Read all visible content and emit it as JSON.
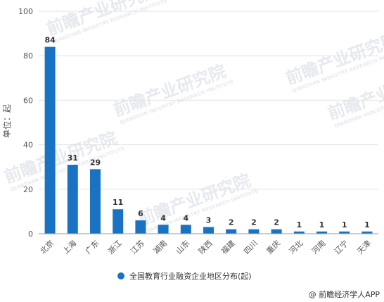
{
  "chart_data": {
    "type": "bar",
    "categories": [
      "北京",
      "上海",
      "广东",
      "浙江",
      "江苏",
      "湖南",
      "山东",
      "陕西",
      "福建",
      "四川",
      "重庆",
      "河北",
      "河南",
      "辽宁",
      "天津"
    ],
    "series": [
      {
        "name": "全国教育行业融资企业地区分布(起)",
        "values": [
          84,
          31,
          29,
          11,
          6,
          4,
          4,
          3,
          2,
          2,
          2,
          1,
          1,
          1,
          1
        ]
      }
    ],
    "title": "",
    "xlabel": "",
    "ylabel": "单位：起",
    "ylim": [
      0,
      100
    ],
    "yticks": [
      0,
      20,
      40,
      60,
      80,
      100
    ],
    "grid": true,
    "legend_position": "bottom-center",
    "data_labels": true,
    "colors": {
      "bar": "#1a73c2",
      "grid": "#e2e2e2",
      "axis": "#999999"
    }
  },
  "source": "@ 前瞻经济学人APP",
  "watermark": {
    "main": "前瞻产业研究院",
    "sub": "QIANZHAN INDUSTRY RESEARCH INSTITUTE"
  }
}
